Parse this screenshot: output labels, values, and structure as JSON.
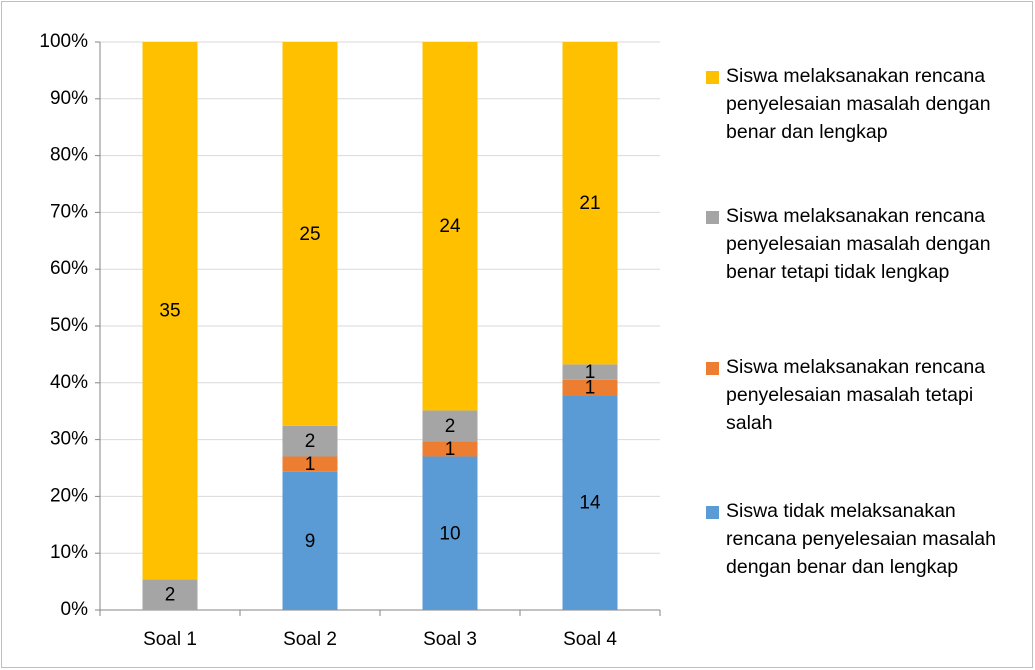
{
  "chart_data": {
    "type": "bar",
    "stacked": "percent",
    "categories": [
      "Soal 1",
      "Soal 2",
      "Soal 3",
      "Soal 4"
    ],
    "series": [
      {
        "name": "Siswa tidak melaksanakan rencana penyelesaian masalah dengan benar dan lengkap",
        "color": "#5b9bd5",
        "values": [
          0,
          9,
          10,
          14
        ]
      },
      {
        "name": "Siswa melaksanakan rencana penyelesaian masalah tetapi salah",
        "color": "#ed7d31",
        "values": [
          0,
          1,
          1,
          1
        ]
      },
      {
        "name": "Siswa melaksanakan rencana penyelesaian masalah dengan benar tetapi tidak lengkap",
        "color": "#a5a5a5",
        "values": [
          2,
          2,
          2,
          1
        ]
      },
      {
        "name": "Siswa melaksanakan rencana penyelesaian masalah dengan benar dan lengkap",
        "color": "#ffc000",
        "values": [
          35,
          25,
          24,
          21
        ]
      }
    ],
    "ylim": [
      0,
      100
    ],
    "yticks": [
      {
        "value": 0,
        "label": "0%"
      },
      {
        "value": 10,
        "label": "10%"
      },
      {
        "value": 20,
        "label": "20%"
      },
      {
        "value": 30,
        "label": "30%"
      },
      {
        "value": 40,
        "label": "40%"
      },
      {
        "value": 50,
        "label": "50%"
      },
      {
        "value": 60,
        "label": "60%"
      },
      {
        "value": 70,
        "label": "70%"
      },
      {
        "value": 80,
        "label": "80%"
      },
      {
        "value": 90,
        "label": "90%"
      },
      {
        "value": 100,
        "label": "100%"
      }
    ],
    "grid": true,
    "legend": "right"
  }
}
